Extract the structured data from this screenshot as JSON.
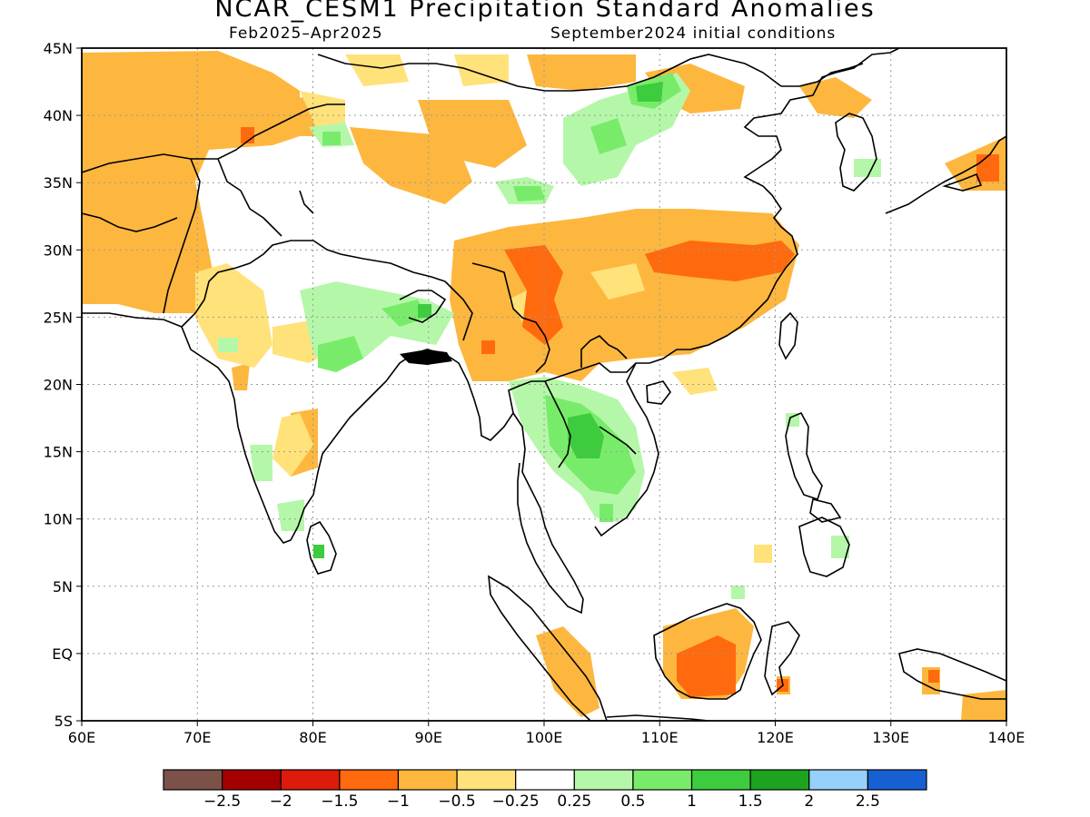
{
  "title": "NCAR_CESM1 Precipitation Standard Anomalies",
  "subtitle_left": "Feb2025–Apr2025",
  "subtitle_right": "September2024 initial conditions",
  "map": {
    "lon_range": [
      60,
      140
    ],
    "lat_range": [
      -5,
      45
    ],
    "x_ticks": [
      "60E",
      "70E",
      "80E",
      "90E",
      "100E",
      "110E",
      "120E",
      "130E",
      "140E"
    ],
    "y_ticks": [
      "45N",
      "40N",
      "35N",
      "30N",
      "25N",
      "20N",
      "15N",
      "10N",
      "5N",
      "EQ",
      "5S"
    ],
    "grid": true
  },
  "colorbar": {
    "colors": [
      "#7b5148",
      "#a50000",
      "#dd1b0c",
      "#ff6a0e",
      "#fdb73f",
      "#ffe27a",
      "#ffffff",
      "#b5f7a9",
      "#78ec6a",
      "#3dcc3d",
      "#1da41f",
      "#97d1fb",
      "#1760d4"
    ],
    "labels": [
      "−2.5",
      "−2",
      "−1.5",
      "−1",
      "−0.5",
      "−0.25",
      "0.25",
      "0.5",
      "1",
      "1.5",
      "2",
      "2.5"
    ]
  }
}
